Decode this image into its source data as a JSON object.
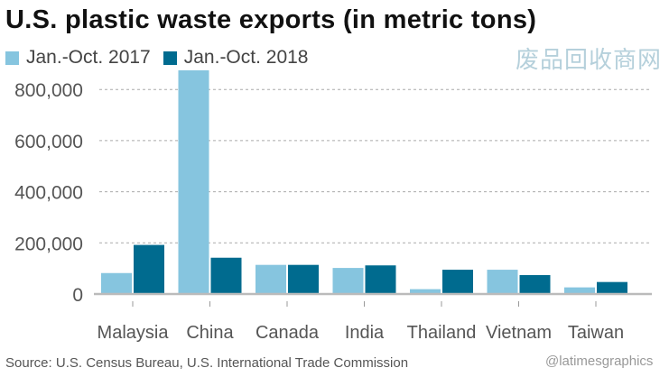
{
  "chart_data": {
    "type": "bar",
    "title": "U.S. plastic waste exports (in metric tons)",
    "categories": [
      "Malaysia",
      "China",
      "Canada",
      "India",
      "Thailand",
      "Vietnam",
      "Taiwan"
    ],
    "series": [
      {
        "name": "Jan.-Oct. 2017",
        "color": "#86c5df",
        "values": [
          82000,
          875000,
          114000,
          102000,
          19000,
          95000,
          26000
        ]
      },
      {
        "name": "Jan.-Oct. 2018",
        "color": "#006b8f",
        "values": [
          192000,
          142000,
          114000,
          112000,
          95000,
          74000,
          47000
        ]
      }
    ],
    "yticks": [
      0,
      200000,
      400000,
      600000,
      800000
    ],
    "ytick_labels": [
      "0",
      "200,000",
      "400,000",
      "600,000",
      "800,000"
    ],
    "ylim": [
      0,
      880000
    ],
    "grid": true,
    "legend": "top-left",
    "xlabel": "",
    "ylabel": ""
  },
  "source": "Source: U.S. Census Bureau, U.S. International Trade Commission",
  "credit": "@latimesgraphics",
  "watermark": "废品回收商网"
}
